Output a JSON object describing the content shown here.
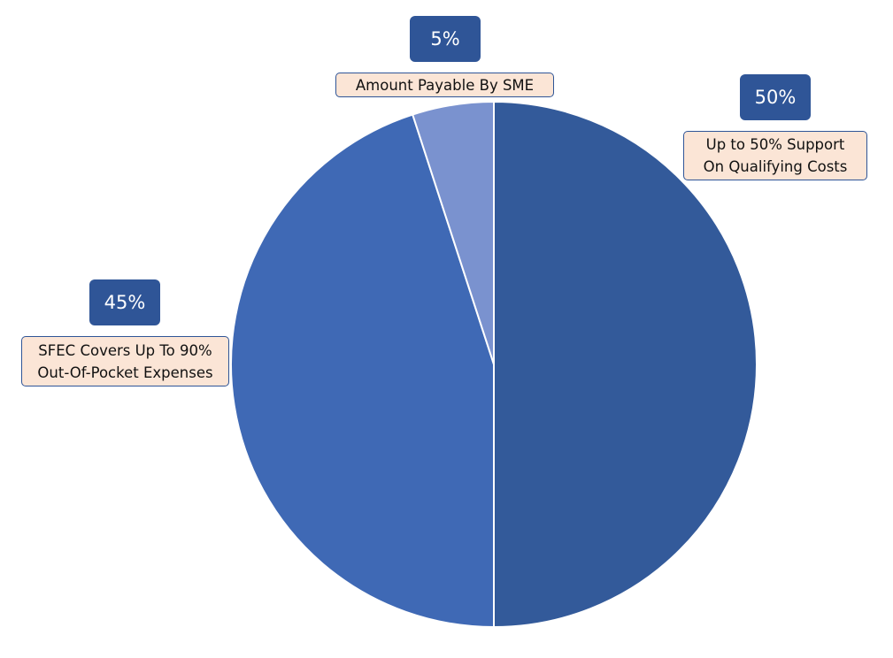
{
  "chart_data": {
    "type": "pie",
    "categories": [
      "Up to 50% Support\nOn Qualifying Costs",
      "SFEC Covers Up To 90%\nOut-Of-Pocket Expenses",
      "Amount Payable By SME"
    ],
    "values": [
      50,
      45,
      5
    ],
    "value_labels": [
      "50%",
      "45%",
      "5%"
    ],
    "colors": [
      "#335a9a",
      "#3f69b5",
      "#7a92cf"
    ]
  }
}
